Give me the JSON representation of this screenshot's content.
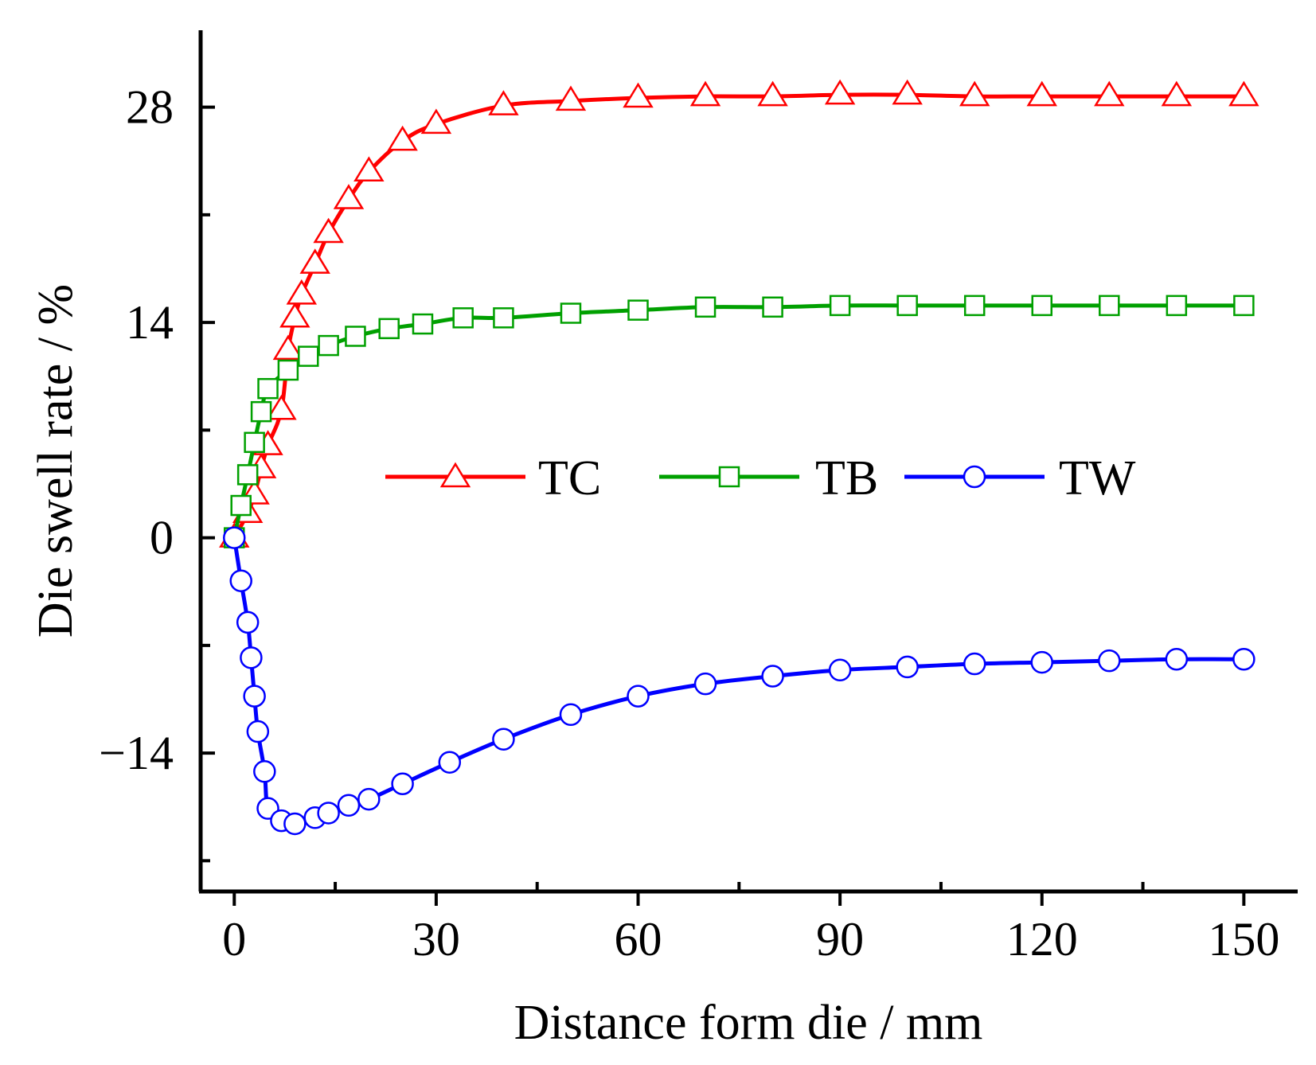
{
  "chart_data": {
    "type": "line",
    "title": "",
    "xlabel": "Distance form die / mm",
    "ylabel": "Die swell rate / %",
    "xlim": [
      -5,
      158
    ],
    "ylim": [
      -23,
      33
    ],
    "x_ticks": [
      0,
      30,
      60,
      90,
      120,
      150
    ],
    "x_tick_labels": [
      "0",
      "30",
      "60",
      "90",
      "120",
      "150"
    ],
    "x_minor_ticks": [
      15,
      45,
      75,
      105,
      135
    ],
    "y_ticks": [
      -14,
      0,
      14,
      28
    ],
    "y_tick_labels": [
      "−14",
      "0",
      "14",
      "28"
    ],
    "y_minor_ticks": [
      -21,
      -7,
      7,
      21
    ],
    "legend_position": "center",
    "series": [
      {
        "name": "TC",
        "color": "#ff0000",
        "marker": "triangle",
        "x": [
          0,
          2,
          3,
          4,
          5,
          7,
          8,
          9,
          10,
          12,
          14,
          17,
          20,
          25,
          30,
          40,
          50,
          60,
          70,
          80,
          90,
          100,
          110,
          120,
          130,
          140,
          150
        ],
        "y": [
          0,
          1.6,
          2.8,
          4.5,
          6.0,
          8.3,
          12.2,
          14.3,
          15.8,
          17.8,
          19.8,
          22.0,
          23.8,
          25.8,
          26.9,
          28.1,
          28.4,
          28.6,
          28.7,
          28.7,
          28.8,
          28.8,
          28.7,
          28.7,
          28.7,
          28.7,
          28.7
        ]
      },
      {
        "name": "TB",
        "color": "#00a000",
        "marker": "square",
        "x": [
          0,
          1,
          2,
          3,
          4,
          5,
          8,
          11,
          14,
          18,
          23,
          28,
          34,
          40,
          50,
          60,
          70,
          80,
          90,
          100,
          110,
          120,
          130,
          140,
          150
        ],
        "y": [
          0,
          2.1,
          4.1,
          6.2,
          8.2,
          9.7,
          10.9,
          11.8,
          12.5,
          13.1,
          13.6,
          13.9,
          14.3,
          14.3,
          14.6,
          14.8,
          15.0,
          15.0,
          15.1,
          15.1,
          15.1,
          15.1,
          15.1,
          15.1,
          15.1
        ]
      },
      {
        "name": "TW",
        "color": "#0000ff",
        "marker": "circle",
        "x": [
          0,
          1,
          2,
          2.5,
          3,
          3.5,
          4.5,
          5,
          7,
          9,
          12,
          14,
          17,
          20,
          25,
          32,
          40,
          50,
          60,
          70,
          80,
          90,
          100,
          110,
          120,
          130,
          140,
          150
        ],
        "y": [
          0,
          -2.8,
          -5.5,
          -7.8,
          -10.3,
          -12.6,
          -15.2,
          -17.6,
          -18.4,
          -18.6,
          -18.2,
          -17.9,
          -17.4,
          -17.0,
          -16.0,
          -14.6,
          -13.1,
          -11.5,
          -10.3,
          -9.5,
          -9.0,
          -8.6,
          -8.4,
          -8.2,
          -8.1,
          -8.0,
          -7.9,
          -7.9
        ]
      }
    ]
  }
}
